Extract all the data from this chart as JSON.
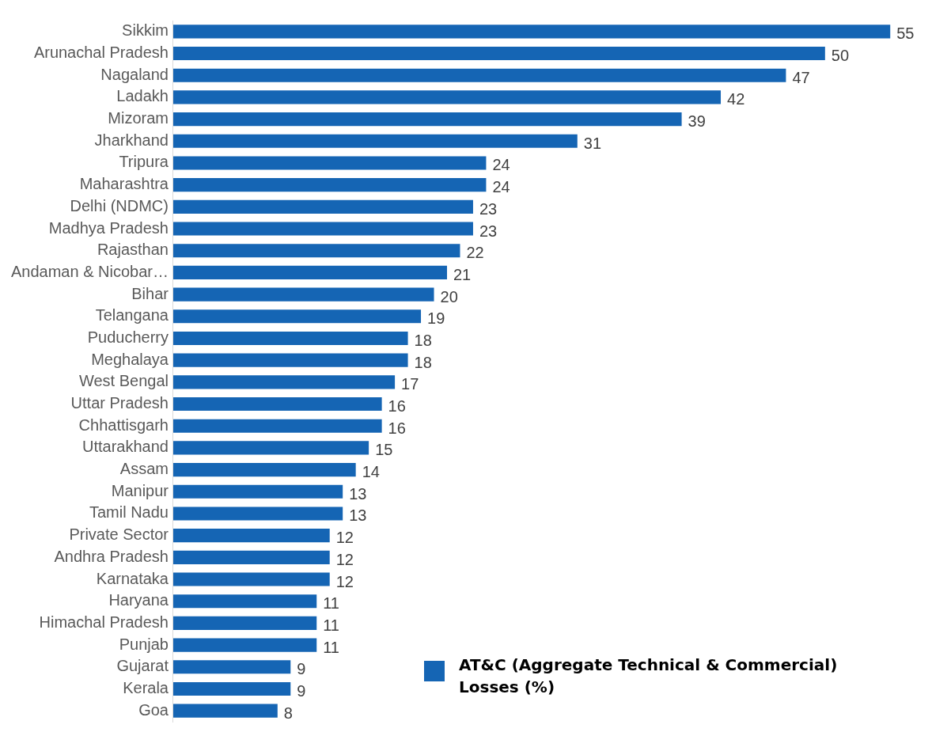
{
  "chart_data": {
    "type": "bar",
    "orientation": "horizontal",
    "data_labels": true,
    "legend": "bottom right",
    "categories": [
      "Sikkim",
      "Arunachal Pradesh",
      "Nagaland",
      "Ladakh",
      "Mizoram",
      "Jharkhand",
      "Tripura",
      "Maharashtra",
      "Delhi (NDMC)",
      "Madhya Pradesh",
      "Rajasthan",
      "Andaman & Nicobar…",
      "Bihar",
      "Telangana",
      "Puducherry",
      "Meghalaya",
      "West Bengal",
      "Uttar Pradesh",
      "Chhattisgarh",
      "Uttarakhand",
      "Assam",
      "Manipur",
      "Tamil Nadu",
      "Private Sector",
      "Andhra Pradesh",
      "Karnataka",
      "Haryana",
      "Himachal Pradesh",
      "Punjab",
      "Gujarat",
      "Kerala",
      "Goa"
    ],
    "series": [
      {
        "name": "AT&C (Aggregate Technical & Commercial) Losses (%)",
        "color": "#1565b4",
        "values": [
          55,
          50,
          47,
          42,
          39,
          31,
          24,
          24,
          23,
          23,
          22,
          21,
          20,
          19,
          18,
          18,
          17,
          16,
          16,
          15,
          14,
          13,
          13,
          12,
          12,
          12,
          11,
          11,
          11,
          9,
          9,
          8
        ]
      }
    ]
  }
}
